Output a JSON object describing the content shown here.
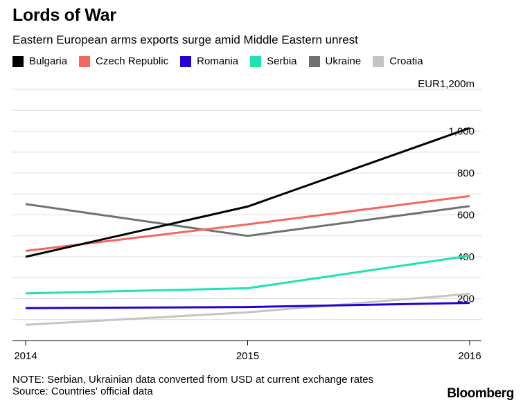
{
  "header": {
    "title": "Lords of War",
    "subtitle": "Eastern European arms exports surge amid Middle Eastern unrest"
  },
  "chart_data": {
    "type": "line",
    "title": "Lords of War",
    "subtitle": "Eastern European arms exports surge amid Middle Eastern unrest",
    "x": [
      2014,
      2015,
      2016
    ],
    "x_tick_labels": [
      "2014",
      "2015",
      "2016"
    ],
    "ylim": [
      0,
      1200
    ],
    "y_ticks": [
      200,
      400,
      600,
      800,
      1000
    ],
    "y_tick_labels": [
      "200",
      "400",
      "600",
      "800",
      "1,000"
    ],
    "y_top_label": "EUR1,200m",
    "ylabel": "EUR m",
    "xlabel": "",
    "grid": true,
    "legend_position": "top-left",
    "series": [
      {
        "name": "Bulgaria",
        "color": "#000000",
        "values": [
          400,
          640,
          1015
        ]
      },
      {
        "name": "Czech Republic",
        "color": "#f2675f",
        "values": [
          428,
          555,
          690
        ]
      },
      {
        "name": "Romania",
        "color": "#2200d8",
        "values": [
          155,
          160,
          180
        ]
      },
      {
        "name": "Serbia",
        "color": "#1ee3b0",
        "values": [
          225,
          250,
          405
        ]
      },
      {
        "name": "Ukraine",
        "color": "#707070",
        "values": [
          652,
          500,
          642
        ]
      },
      {
        "name": "Croatia",
        "color": "#c4c4c4",
        "values": [
          75,
          135,
          223
        ]
      }
    ]
  },
  "footer": {
    "note": "NOTE: Serbian, Ukrainian data converted from USD at current exchange rates",
    "source": "Source: Countries' official data",
    "brand": "Bloomberg"
  }
}
